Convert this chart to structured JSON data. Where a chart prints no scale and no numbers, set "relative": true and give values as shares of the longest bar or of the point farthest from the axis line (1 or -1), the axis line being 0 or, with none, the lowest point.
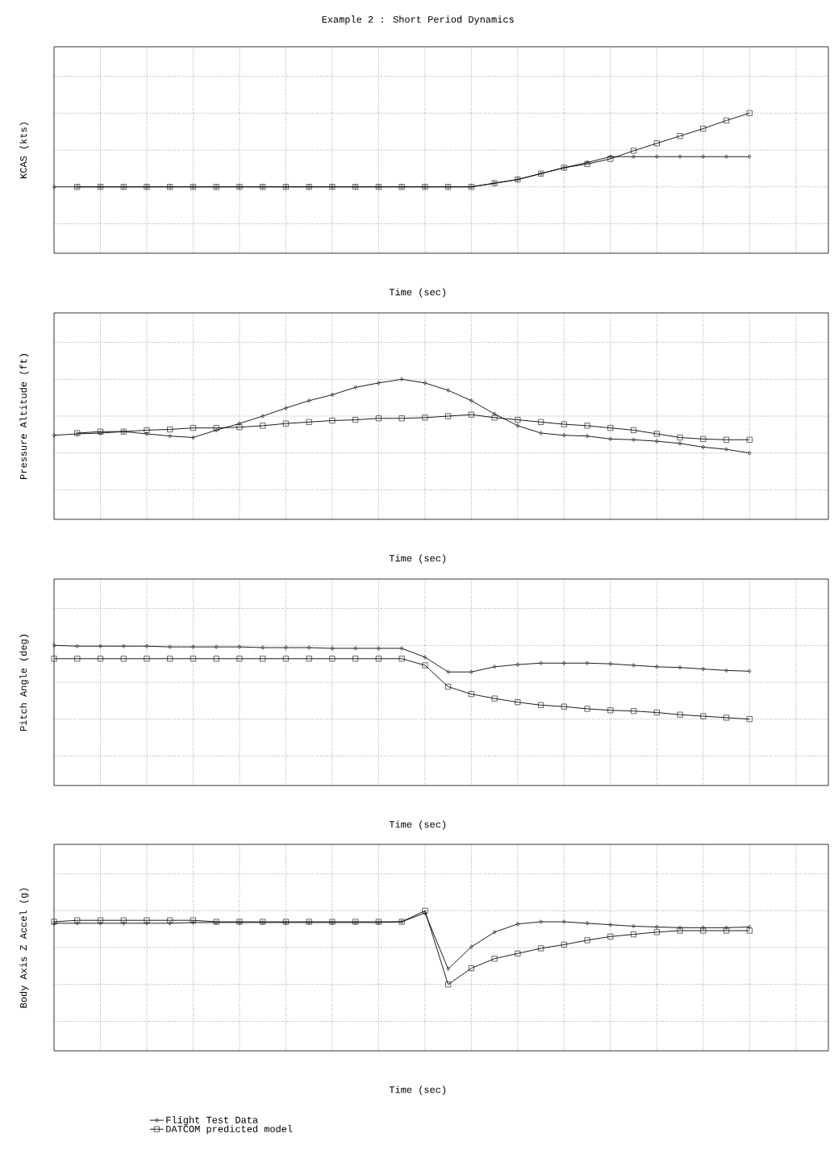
{
  "chart_data": [
    {
      "type": "line",
      "title": "Example 2 : Short Period Dynamics",
      "xlabel": "Time (sec)",
      "ylabel": "KCAS (kts)",
      "relative": true,
      "grid": true,
      "categories": [
        null,
        null,
        null,
        null,
        null,
        null,
        null,
        null,
        null,
        null,
        null,
        null,
        null,
        null,
        null,
        null,
        null,
        null,
        null,
        null,
        null,
        null,
        null,
        null,
        null,
        null,
        null,
        null,
        null,
        null,
        null
      ],
      "series": [
        {
          "color": "#000000",
          "marker": "diamond",
          "values": [
            0,
            0,
            0,
            0,
            0,
            0,
            0,
            0,
            0,
            0,
            0,
            0,
            0,
            0,
            0,
            0,
            0,
            0,
            0,
            0.05,
            0.1,
            0.18,
            0.26,
            0.33,
            0.41,
            0.41,
            0.41,
            0.41,
            0.41,
            0.41,
            0.41
          ]
        },
        {
          "color": "#000000",
          "marker": "square",
          "values": [
            null,
            0,
            0,
            0,
            0,
            0,
            0,
            0,
            0,
            0,
            0,
            0,
            0,
            0,
            0,
            0,
            0,
            0,
            0,
            0.05,
            0.1,
            0.18,
            0.26,
            0.31,
            0.38,
            0.49,
            0.59,
            0.69,
            0.79,
            0.9,
            1
          ]
        }
      ]
    },
    {
      "type": "line",
      "xlabel": "Time (sec)",
      "ylabel": "Pressure Altitude (ft)",
      "relative": true,
      "grid": true,
      "categories": [
        null,
        null,
        null,
        null,
        null,
        null,
        null,
        null,
        null,
        null,
        null,
        null,
        null,
        null,
        null,
        null,
        null,
        null,
        null,
        null,
        null,
        null,
        null,
        null,
        null,
        null,
        null,
        null,
        null,
        null,
        null
      ],
      "series": [
        {
          "color": "#000000",
          "marker": "diamond",
          "values": [
            0.24,
            0.26,
            0.27,
            0.29,
            0.26,
            0.23,
            0.21,
            0.31,
            0.4,
            0.5,
            0.61,
            0.71,
            0.79,
            0.89,
            0.95,
            1,
            0.95,
            0.85,
            0.71,
            0.53,
            0.37,
            0.27,
            0.24,
            0.23,
            0.19,
            0.18,
            0.16,
            0.13,
            0.08,
            0.05,
            0
          ]
        },
        {
          "color": "#000000",
          "marker": "square",
          "values": [
            null,
            0.27,
            0.29,
            0.29,
            0.31,
            0.32,
            0.34,
            0.34,
            0.35,
            0.37,
            0.4,
            0.42,
            0.44,
            0.45,
            0.47,
            0.47,
            0.48,
            0.5,
            0.52,
            0.48,
            0.45,
            0.42,
            0.39,
            0.37,
            0.34,
            0.31,
            0.26,
            0.21,
            0.19,
            0.18,
            0.18
          ]
        }
      ]
    },
    {
      "type": "line",
      "xlabel": "Time (sec)",
      "ylabel": "Pitch Angle (deg)",
      "relative": true,
      "grid": true,
      "categories": [
        null,
        null,
        null,
        null,
        null,
        null,
        null,
        null,
        null,
        null,
        null,
        null,
        null,
        null,
        null,
        null,
        null,
        null,
        null,
        null,
        null,
        null,
        null,
        null,
        null,
        null,
        null,
        null,
        null,
        null,
        null
      ],
      "series": [
        {
          "color": "#000000",
          "marker": "diamond",
          "values": [
            1,
            0.99,
            0.99,
            0.99,
            0.99,
            0.98,
            0.98,
            0.98,
            0.98,
            0.97,
            0.97,
            0.97,
            0.96,
            0.96,
            0.96,
            0.96,
            0.84,
            0.64,
            0.64,
            0.71,
            0.74,
            0.76,
            0.76,
            0.76,
            0.75,
            0.73,
            0.71,
            0.7,
            0.68,
            0.66,
            0.65
          ]
        },
        {
          "color": "#000000",
          "marker": "square",
          "values": [
            0.82,
            0.82,
            0.82,
            0.82,
            0.82,
            0.82,
            0.82,
            0.82,
            0.82,
            0.82,
            0.82,
            0.82,
            0.82,
            0.82,
            0.82,
            0.82,
            0.73,
            0.44,
            0.34,
            0.28,
            0.23,
            0.19,
            0.17,
            0.14,
            0.12,
            0.11,
            0.09,
            0.06,
            0.04,
            0.02,
            0
          ]
        }
      ]
    },
    {
      "type": "line",
      "xlabel": "Time (sec)",
      "ylabel": "Body Axis Z Accel (g)",
      "relative": true,
      "grid": true,
      "legend": "bottom left",
      "categories": [
        null,
        null,
        null,
        null,
        null,
        null,
        null,
        null,
        null,
        null,
        null,
        null,
        null,
        null,
        null,
        null,
        null,
        null,
        null,
        null,
        null,
        null,
        null,
        null,
        null,
        null,
        null,
        null,
        null,
        null,
        null
      ],
      "series": [
        {
          "name": "Flight Test Data",
          "color": "#000000",
          "marker": "diamond",
          "values": [
            0.83,
            0.83,
            0.83,
            0.83,
            0.83,
            0.83,
            0.84,
            0.84,
            0.84,
            0.84,
            0.84,
            0.84,
            0.84,
            0.84,
            0.84,
            0.85,
            0.97,
            0.21,
            0.51,
            0.71,
            0.82,
            0.85,
            0.85,
            0.83,
            0.81,
            0.79,
            0.78,
            0.77,
            0.77,
            0.77,
            0.78
          ]
        },
        {
          "name": "DATCOM predicted model",
          "color": "#000000",
          "marker": "square",
          "values": [
            0.85,
            0.87,
            0.87,
            0.87,
            0.87,
            0.87,
            0.87,
            0.85,
            0.85,
            0.85,
            0.85,
            0.85,
            0.85,
            0.85,
            0.85,
            0.85,
            1,
            0,
            0.22,
            0.35,
            0.42,
            0.49,
            0.54,
            0.6,
            0.65,
            0.68,
            0.71,
            0.73,
            0.73,
            0.73,
            0.73
          ]
        }
      ]
    }
  ]
}
